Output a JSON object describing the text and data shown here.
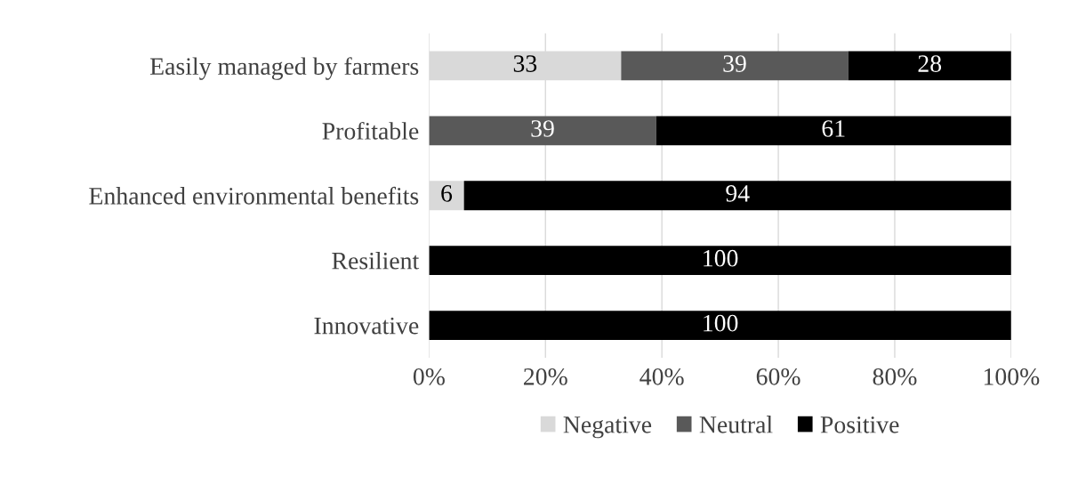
{
  "chart_data": {
    "type": "bar",
    "orientation": "horizontal",
    "stacked": true,
    "categories": [
      "Easily managed by farmers",
      "Profitable",
      "Enhanced environmental benefits",
      "Resilient",
      "Innovative"
    ],
    "series": [
      {
        "name": "Negative",
        "color": "#d9d9d9",
        "values": [
          33,
          0,
          6,
          0,
          0
        ],
        "value_labels": [
          "33",
          null,
          "6",
          null,
          null
        ]
      },
      {
        "name": "Neutral",
        "color": "#595959",
        "values": [
          39,
          39,
          0,
          0,
          0
        ],
        "value_labels": [
          "39",
          "39",
          null,
          null,
          null
        ]
      },
      {
        "name": "Positive",
        "color": "#000000",
        "values": [
          28,
          61,
          94,
          100,
          100
        ],
        "value_labels": [
          "28",
          "61",
          "94",
          "100",
          "100"
        ]
      }
    ],
    "xlim": [
      0,
      100
    ],
    "xticks": [
      {
        "value": 0,
        "label": "0%"
      },
      {
        "value": 20,
        "label": "20%"
      },
      {
        "value": 40,
        "label": "40%"
      },
      {
        "value": 60,
        "label": "60%"
      },
      {
        "value": 80,
        "label": "80%"
      },
      {
        "value": 100,
        "label": "100%"
      }
    ],
    "grid": "x",
    "legend": "bottom"
  }
}
